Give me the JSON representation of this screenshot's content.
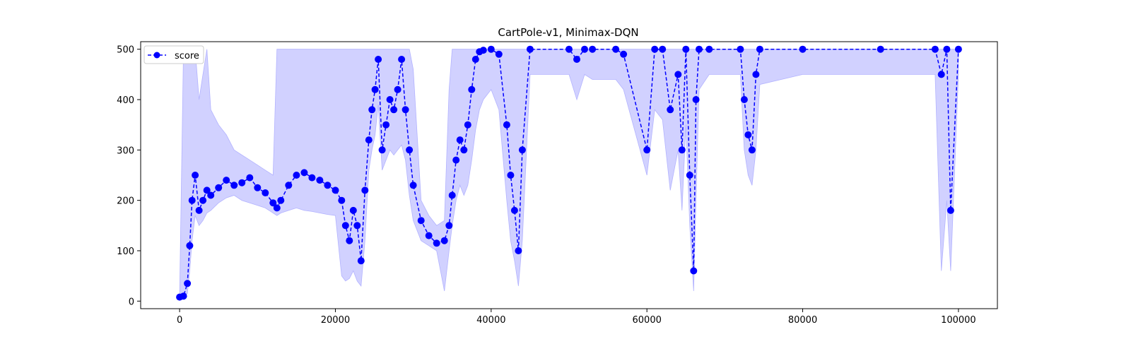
{
  "chart_data": {
    "type": "line",
    "title": "CartPole-v1, Minimax-DQN",
    "xlabel": "",
    "ylabel": "",
    "xlim": [
      -5000,
      105000
    ],
    "ylim": [
      -15,
      515
    ],
    "xticks": [
      0,
      20000,
      40000,
      60000,
      80000,
      100000
    ],
    "xtick_labels": [
      "0",
      "20000",
      "40000",
      "60000",
      "80000",
      "100000"
    ],
    "yticks": [
      0,
      100,
      200,
      300,
      400,
      500
    ],
    "ytick_labels": [
      "0",
      "100",
      "200",
      "300",
      "400",
      "500"
    ],
    "grid": false,
    "legend": {
      "position": "top-left",
      "entries": [
        "score"
      ]
    },
    "colors": {
      "line": "#0000ff",
      "band": "#ccccff"
    },
    "series": [
      {
        "name": "score",
        "style": "dashed line with circle markers",
        "x": [
          0,
          500,
          1000,
          1300,
          1600,
          2000,
          2500,
          3000,
          3500,
          4000,
          5000,
          6000,
          7000,
          8000,
          9000,
          10000,
          11000,
          12000,
          12500,
          13000,
          14000,
          15000,
          16000,
          17000,
          18000,
          19000,
          20000,
          20800,
          21300,
          21800,
          22300,
          22800,
          23300,
          23800,
          24300,
          24700,
          25100,
          25500,
          26000,
          26500,
          27000,
          27500,
          28000,
          28500,
          29000,
          29500,
          30000,
          31000,
          32000,
          33000,
          34000,
          34600,
          35000,
          35500,
          36000,
          36500,
          37000,
          37500,
          38000,
          38500,
          39000,
          40000,
          41000,
          42000,
          42500,
          43000,
          43500,
          44000,
          45000,
          50000,
          51000,
          52000,
          53000,
          56000,
          57000,
          60000,
          61000,
          62000,
          63000,
          64000,
          64500,
          65000,
          65500,
          66000,
          66300,
          66700,
          68000,
          72000,
          72500,
          73000,
          73500,
          74000,
          74500,
          80000,
          90000,
          97000,
          97800,
          98500,
          99000,
          100000
        ],
        "values": [
          8,
          10,
          35,
          110,
          200,
          250,
          180,
          200,
          220,
          210,
          225,
          240,
          230,
          235,
          245,
          225,
          215,
          195,
          185,
          200,
          230,
          250,
          255,
          245,
          240,
          230,
          220,
          200,
          150,
          120,
          180,
          150,
          80,
          220,
          320,
          380,
          420,
          480,
          300,
          350,
          400,
          380,
          420,
          480,
          380,
          300,
          230,
          160,
          130,
          115,
          120,
          150,
          210,
          280,
          320,
          300,
          350,
          420,
          480,
          495,
          498,
          500,
          490,
          350,
          250,
          180,
          100,
          300,
          500,
          500,
          480,
          500,
          500,
          500,
          490,
          300,
          500,
          500,
          380,
          450,
          300,
          500,
          250,
          60,
          400,
          500,
          500,
          500,
          400,
          330,
          300,
          450,
          500,
          500,
          500,
          500,
          450,
          500,
          180,
          500
        ],
        "band_upper": [
          10,
          500,
          500,
          500,
          500,
          500,
          400,
          450,
          500,
          380,
          350,
          330,
          300,
          290,
          280,
          270,
          260,
          250,
          500,
          500,
          500,
          500,
          500,
          500,
          500,
          500,
          500,
          500,
          500,
          500,
          500,
          500,
          500,
          500,
          500,
          500,
          500,
          500,
          500,
          500,
          500,
          500,
          500,
          500,
          500,
          500,
          460,
          200,
          170,
          150,
          160,
          420,
          500,
          500,
          500,
          500,
          500,
          500,
          500,
          500,
          500,
          500,
          500,
          500,
          500,
          500,
          500,
          500,
          500,
          500,
          500,
          500,
          500,
          500,
          500,
          500,
          500,
          500,
          500,
          500,
          500,
          500,
          500,
          500,
          500,
          500,
          500,
          500,
          500,
          500,
          500,
          500,
          500,
          500,
          500,
          500,
          500,
          500,
          500,
          500
        ],
        "band_lower": [
          7,
          8,
          15,
          60,
          120,
          170,
          150,
          160,
          175,
          180,
          195,
          205,
          210,
          200,
          195,
          190,
          185,
          175,
          170,
          175,
          180,
          185,
          180,
          178,
          175,
          172,
          170,
          50,
          40,
          45,
          60,
          40,
          30,
          120,
          260,
          300,
          330,
          390,
          260,
          280,
          300,
          290,
          300,
          310,
          280,
          210,
          160,
          120,
          110,
          100,
          20,
          100,
          150,
          200,
          230,
          210,
          230,
          280,
          340,
          380,
          400,
          420,
          380,
          200,
          120,
          80,
          30,
          120,
          450,
          450,
          400,
          450,
          440,
          440,
          420,
          250,
          380,
          360,
          220,
          300,
          180,
          350,
          150,
          20,
          200,
          420,
          450,
          450,
          300,
          250,
          230,
          300,
          430,
          450,
          450,
          450,
          60,
          200,
          60,
          450
        ]
      }
    ]
  }
}
